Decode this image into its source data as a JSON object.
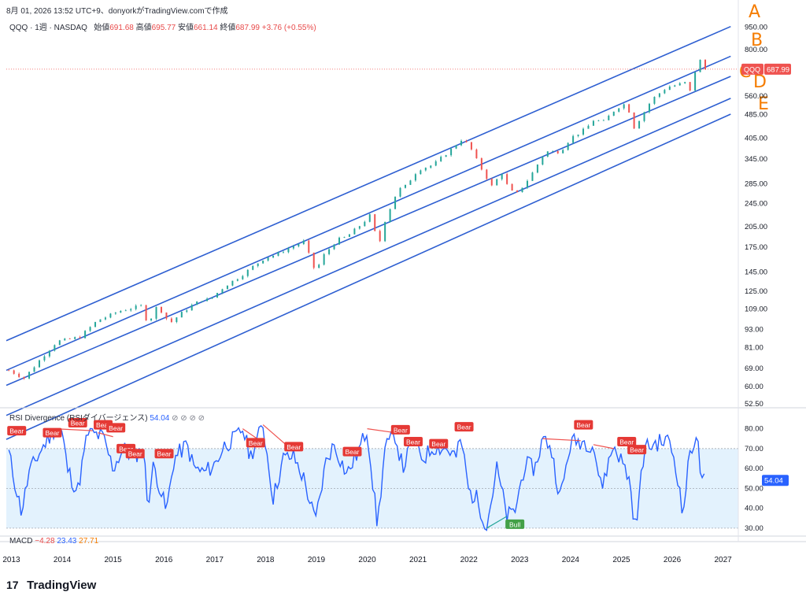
{
  "header": {
    "caption": "8月 01, 2026 13:52 UTC+9、donyorkがTradingView.comで作成",
    "symbol": "QQQ · 1週 · NASDAQ",
    "open_label": "始値",
    "open": "691.68",
    "high_label": "高値",
    "high": "695.77",
    "low_label": "安値",
    "low": "661.14",
    "close_label": "終値",
    "close": "687.99",
    "change": "+3.76 (+0.55%)"
  },
  "price_badge": {
    "symbol": "QQQ",
    "value": "687.99"
  },
  "rsi_header": {
    "name": "RSI Divergence (RSIダイバージェンス)",
    "value": "54.04",
    "eyes": "⊘ ⊘ ⊘ ⊘"
  },
  "rsi_badge": "54.04",
  "macd_header": {
    "name": "MACD",
    "v1": "−4.28",
    "v2": "23.43",
    "v3": "27.71"
  },
  "brand": {
    "logo": "17",
    "name": "TradingView"
  },
  "colors": {
    "up": "#26a69a",
    "down": "#ef5350",
    "channel": "#2e5fd1",
    "rsi": "#2962ff",
    "band": "#e3f2fd",
    "annotation": "#f57c00"
  },
  "chart_data": [
    {
      "type": "candlestick",
      "title": "QQQ",
      "y_scale": "log",
      "y_ticks": [
        52.5,
        60.0,
        69.0,
        81.0,
        93.0,
        109.0,
        125.0,
        145.0,
        175.0,
        205.0,
        245.0,
        285.0,
        345.0,
        405.0,
        485.0,
        560.0,
        800.0,
        950.0
      ],
      "x_ticks": [
        "2013",
        "2014",
        "2015",
        "2016",
        "2017",
        "2018",
        "2019",
        "2020",
        "2021",
        "2022",
        "2023",
        "2024",
        "2025",
        "2026",
        "2027"
      ],
      "xlim": [
        2012.9,
        2027.3
      ],
      "ylim": [
        51,
        1050
      ],
      "price_path": [
        [
          2012.95,
          68
        ],
        [
          2013.25,
          64
        ],
        [
          2013.6,
          75
        ],
        [
          2013.9,
          85
        ],
        [
          2014.1,
          86
        ],
        [
          2014.35,
          88
        ],
        [
          2014.7,
          100
        ],
        [
          2014.9,
          103
        ],
        [
          2015.1,
          107
        ],
        [
          2015.4,
          110
        ],
        [
          2015.6,
          112
        ],
        [
          2015.65,
          101
        ],
        [
          2015.7,
          98
        ],
        [
          2015.85,
          110
        ],
        [
          2016.0,
          106
        ],
        [
          2016.1,
          97
        ],
        [
          2016.3,
          104
        ],
        [
          2016.55,
          112
        ],
        [
          2016.75,
          117
        ],
        [
          2016.9,
          117
        ],
        [
          2017.2,
          130
        ],
        [
          2017.5,
          140
        ],
        [
          2017.8,
          153
        ],
        [
          2018.0,
          162
        ],
        [
          2018.2,
          165
        ],
        [
          2018.4,
          172
        ],
        [
          2018.75,
          183
        ],
        [
          2018.9,
          158
        ],
        [
          2018.98,
          145
        ],
        [
          2019.15,
          165
        ],
        [
          2019.4,
          185
        ],
        [
          2019.6,
          190
        ],
        [
          2019.9,
          210
        ],
        [
          2020.1,
          228
        ],
        [
          2020.2,
          170
        ],
        [
          2020.35,
          215
        ],
        [
          2020.6,
          272
        ],
        [
          2020.75,
          280
        ],
        [
          2021.0,
          318
        ],
        [
          2021.3,
          330
        ],
        [
          2021.6,
          365
        ],
        [
          2021.85,
          400
        ],
        [
          2022.0,
          385
        ],
        [
          2022.2,
          330
        ],
        [
          2022.45,
          280
        ],
        [
          2022.65,
          310
        ],
        [
          2022.8,
          270
        ],
        [
          2022.95,
          265
        ],
        [
          2023.2,
          300
        ],
        [
          2023.5,
          365
        ],
        [
          2023.8,
          365
        ],
        [
          2024.0,
          405
        ],
        [
          2024.3,
          435
        ],
        [
          2024.5,
          475
        ],
        [
          2024.6,
          450
        ],
        [
          2024.9,
          510
        ],
        [
          2025.1,
          530
        ],
        [
          2025.25,
          440
        ],
        [
          2025.4,
          480
        ],
        [
          2025.6,
          545
        ],
        [
          2025.9,
          600
        ],
        [
          2026.1,
          610
        ],
        [
          2026.25,
          620
        ],
        [
          2026.35,
          580
        ],
        [
          2026.5,
          730
        ],
        [
          2026.6,
          740
        ],
        [
          2026.65,
          687.99
        ]
      ],
      "channel_lines": [
        {
          "name": "A",
          "from": [
            2012.9,
            85.4
          ],
          "to": [
            2027.15,
            955
          ]
        },
        {
          "name": "B",
          "from": [
            2012.9,
            68.0
          ],
          "to": [
            2027.15,
            760
          ]
        },
        {
          "name": "C",
          "from": [
            2012.9,
            60.6
          ],
          "to": [
            2027.15,
            651
          ]
        },
        {
          "name": "D",
          "from": [
            2012.9,
            48.1
          ],
          "to": [
            2027.15,
            550
          ]
        },
        {
          "name": "E",
          "from": [
            2012.9,
            40.0
          ],
          "to": [
            2027.15,
            487
          ]
        }
      ],
      "annotations": [
        "A",
        "B",
        "C",
        "D",
        "E"
      ],
      "last_price": 687.99
    },
    {
      "type": "line",
      "title": "RSI Divergence (RSIダイバージェンス)",
      "y_ticks": [
        30.0,
        40.0,
        50.0,
        60.0,
        70.0,
        80.0
      ],
      "ylim": [
        28,
        85
      ],
      "band": [
        30,
        70
      ],
      "midline": 50,
      "series": [
        {
          "name": "RSI",
          "values_path": [
            [
              2012.95,
              68
            ],
            [
              2013.05,
              55
            ],
            [
              2013.2,
              38
            ],
            [
              2013.35,
              58
            ],
            [
              2013.6,
              70
            ],
            [
              2013.85,
              80
            ],
            [
              2014.0,
              78
            ],
            [
              2014.1,
              60
            ],
            [
              2014.3,
              48
            ],
            [
              2014.5,
              78
            ],
            [
              2014.8,
              76
            ],
            [
              2015.0,
              60
            ],
            [
              2015.2,
              70
            ],
            [
              2015.4,
              66
            ],
            [
              2015.6,
              70
            ],
            [
              2015.68,
              42
            ],
            [
              2015.8,
              62
            ],
            [
              2016.05,
              38
            ],
            [
              2016.2,
              65
            ],
            [
              2016.45,
              72
            ],
            [
              2016.6,
              60
            ],
            [
              2016.8,
              58
            ],
            [
              2017.0,
              62
            ],
            [
              2017.2,
              72
            ],
            [
              2017.4,
              75
            ],
            [
              2017.55,
              80
            ],
            [
              2017.7,
              66
            ],
            [
              2017.95,
              82
            ],
            [
              2018.15,
              45
            ],
            [
              2018.35,
              65
            ],
            [
              2018.55,
              66
            ],
            [
              2018.75,
              55
            ],
            [
              2018.98,
              33
            ],
            [
              2019.2,
              65
            ],
            [
              2019.35,
              72
            ],
            [
              2019.6,
              57
            ],
            [
              2019.85,
              70
            ],
            [
              2020.0,
              80
            ],
            [
              2020.2,
              31
            ],
            [
              2020.35,
              70
            ],
            [
              2020.55,
              77
            ],
            [
              2020.7,
              60
            ],
            [
              2020.9,
              74
            ],
            [
              2021.1,
              65
            ],
            [
              2021.3,
              71
            ],
            [
              2021.55,
              70
            ],
            [
              2021.75,
              66
            ],
            [
              2021.85,
              75
            ],
            [
              2022.0,
              48
            ],
            [
              2022.15,
              45
            ],
            [
              2022.35,
              31
            ],
            [
              2022.55,
              60
            ],
            [
              2022.75,
              36
            ],
            [
              2022.9,
              38
            ],
            [
              2023.1,
              62
            ],
            [
              2023.3,
              60
            ],
            [
              2023.45,
              75
            ],
            [
              2023.6,
              72
            ],
            [
              2023.8,
              45
            ],
            [
              2024.0,
              73
            ],
            [
              2024.2,
              74
            ],
            [
              2024.45,
              72
            ],
            [
              2024.6,
              50
            ],
            [
              2024.85,
              72
            ],
            [
              2025.0,
              64
            ],
            [
              2025.15,
              55
            ],
            [
              2025.28,
              29
            ],
            [
              2025.45,
              70
            ],
            [
              2025.7,
              73
            ],
            [
              2025.95,
              74
            ],
            [
              2026.1,
              58
            ],
            [
              2026.2,
              36
            ],
            [
              2026.35,
              68
            ],
            [
              2026.48,
              78
            ],
            [
              2026.58,
              52
            ],
            [
              2026.65,
              54.04
            ]
          ]
        }
      ],
      "labels": [
        {
          "text": "Bear",
          "x": 2012.95,
          "y": 79
        },
        {
          "text": "Bear",
          "x": 2013.65,
          "y": 78
        },
        {
          "text": "Bear",
          "x": 2014.15,
          "y": 83
        },
        {
          "text": "Bear",
          "x": 2014.65,
          "y": 82
        },
        {
          "text": "Bear",
          "x": 2014.9,
          "y": 80.5
        },
        {
          "text": "Bear",
          "x": 2015.1,
          "y": 70
        },
        {
          "text": "Bear",
          "x": 2015.28,
          "y": 67.5
        },
        {
          "text": "Bear",
          "x": 2015.85,
          "y": 67.5
        },
        {
          "text": "Bear",
          "x": 2017.65,
          "y": 73
        },
        {
          "text": "Bear",
          "x": 2018.4,
          "y": 71
        },
        {
          "text": "Bear",
          "x": 2019.55,
          "y": 68.5
        },
        {
          "text": "Bear",
          "x": 2020.5,
          "y": 79.5
        },
        {
          "text": "Bear",
          "x": 2020.75,
          "y": 73.5
        },
        {
          "text": "Bear",
          "x": 2021.25,
          "y": 72.5
        },
        {
          "text": "Bear",
          "x": 2021.75,
          "y": 81
        },
        {
          "text": "Bear",
          "x": 2024.1,
          "y": 82
        },
        {
          "text": "Bear",
          "x": 2024.95,
          "y": 73.5
        },
        {
          "text": "Bear",
          "x": 2025.15,
          "y": 69.5
        },
        {
          "text": "Bull",
          "x": 2022.75,
          "y": 32
        }
      ],
      "divergence_lines": [
        [
          [
            2013.85,
            80
          ],
          [
            2014.6,
            79
          ]
        ],
        [
          [
            2014.7,
            78
          ],
          [
            2015.0,
            76
          ]
        ],
        [
          [
            2017.55,
            80
          ],
          [
            2017.95,
            73
          ]
        ],
        [
          [
            2017.95,
            82
          ],
          [
            2018.4,
            72
          ]
        ],
        [
          [
            2020.0,
            80
          ],
          [
            2020.55,
            78
          ]
        ],
        [
          [
            2023.45,
            75
          ],
          [
            2024.2,
            74
          ]
        ],
        [
          [
            2024.45,
            72
          ],
          [
            2024.85,
            70
          ]
        ],
        [
          [
            2022.35,
            30
          ],
          [
            2022.75,
            36
          ]
        ]
      ],
      "last_value": 54.04
    }
  ]
}
